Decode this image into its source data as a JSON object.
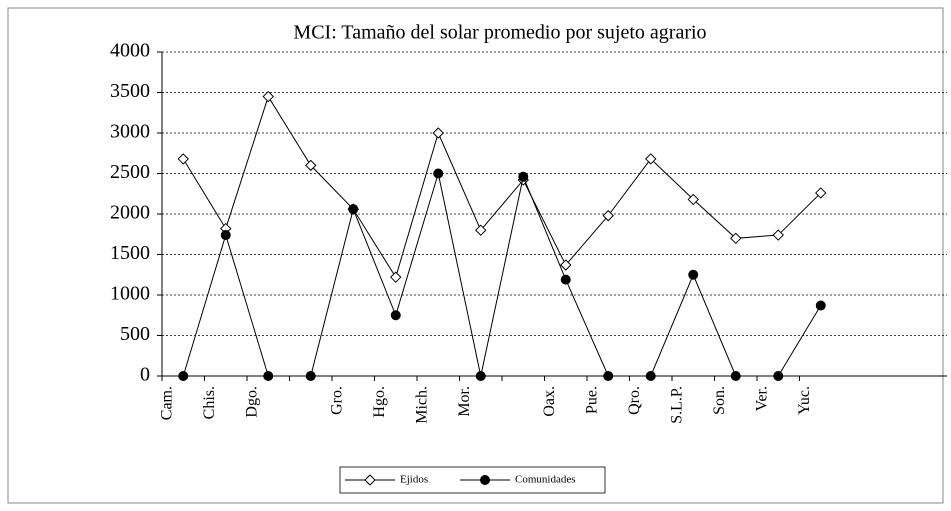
{
  "chart_data": {
    "type": "line",
    "title": "MCI: Tamaño del solar promedio por sujeto agrario",
    "categories": [
      "Cam.",
      "Chis.",
      "Dgo.",
      null,
      "Gro.",
      "Hgo.",
      "Mich.",
      "Mor.",
      null,
      "Oax.",
      "Pue.",
      "Qro.",
      "S.L.P.",
      "Son.",
      "Ver.",
      "Yuc."
    ],
    "series": [
      {
        "name": "Ejidos",
        "color": "#000000",
        "marker": "diamond",
        "values": [
          2680,
          1820,
          3450,
          2600,
          2060,
          1220,
          3000,
          1800,
          2420,
          1370,
          1980,
          2680,
          2180,
          1700,
          1740,
          2260
        ]
      },
      {
        "name": "Comunidades",
        "color": "#000000",
        "marker": "circle",
        "values": [
          0,
          1740,
          0,
          0,
          2060,
          750,
          2500,
          0,
          2460,
          1190,
          0,
          0,
          1250,
          0,
          0,
          870
        ]
      }
    ],
    "ylim": [
      0,
      4000
    ],
    "yticks": [
      0,
      500,
      1000,
      1500,
      2000,
      2500,
      3000,
      3500,
      4000
    ],
    "grid": true,
    "legend": "bottom"
  }
}
